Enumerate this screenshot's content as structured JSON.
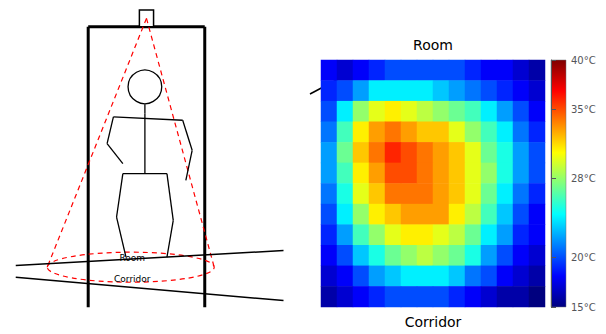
{
  "chart_data": {
    "type": "heatmap",
    "title": "Room",
    "xlabel": "Corridor",
    "annotations": [
      "Room",
      "Corridor"
    ],
    "tick_labels": false,
    "values": [
      [
        18,
        17,
        18,
        19,
        20,
        20,
        20,
        20,
        20,
        19,
        18,
        18,
        17,
        16
      ],
      [
        19,
        20,
        22,
        24,
        24,
        24,
        24,
        23,
        22,
        21,
        20,
        19,
        18,
        17
      ],
      [
        20,
        24,
        28,
        30,
        31,
        30,
        29,
        28,
        27,
        26,
        24,
        22,
        20,
        18
      ],
      [
        21,
        26,
        31,
        33,
        34,
        33,
        32,
        32,
        30,
        28,
        26,
        24,
        21,
        19
      ],
      [
        22,
        27,
        32,
        34,
        36,
        35,
        34,
        33,
        32,
        30,
        27,
        25,
        22,
        20
      ],
      [
        22,
        26,
        31,
        33,
        35,
        35,
        34,
        33,
        32,
        30,
        28,
        25,
        22,
        20
      ],
      [
        21,
        25,
        30,
        32,
        34,
        34,
        34,
        33,
        32,
        30,
        27,
        24,
        21,
        19
      ],
      [
        20,
        24,
        28,
        31,
        32,
        33,
        33,
        33,
        31,
        29,
        26,
        23,
        20,
        18
      ],
      [
        19,
        22,
        26,
        28,
        30,
        31,
        31,
        30,
        29,
        27,
        24,
        22,
        19,
        18
      ],
      [
        18,
        20,
        23,
        25,
        27,
        28,
        29,
        28,
        27,
        25,
        22,
        20,
        18,
        17
      ],
      [
        17,
        18,
        20,
        22,
        23,
        24,
        24,
        24,
        23,
        21,
        20,
        18,
        17,
        16
      ],
      [
        16,
        17,
        18,
        19,
        20,
        20,
        20,
        20,
        19,
        18,
        17,
        16,
        16,
        15
      ]
    ],
    "color_range": [
      15,
      40
    ],
    "color_ticks": [
      {
        "value": 15,
        "label": "15°C"
      },
      {
        "value": 20,
        "label": "20°C"
      },
      {
        "value": 28,
        "label": "28°C"
      },
      {
        "value": 35,
        "label": "35°C"
      },
      {
        "value": 40,
        "label": "40°C"
      }
    ]
  }
}
